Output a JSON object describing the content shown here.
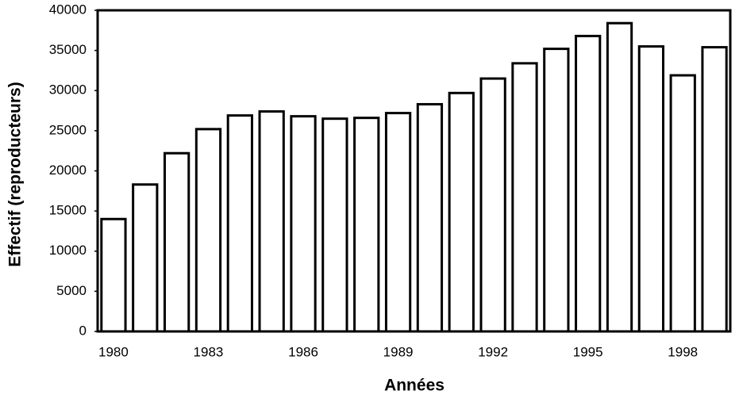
{
  "chart_data": {
    "type": "bar",
    "x_label": "Années",
    "y_label": "Effectif (reproducteurs)",
    "categories": [
      "1980",
      null,
      null,
      "1983",
      null,
      null,
      "1986",
      null,
      null,
      "1989",
      null,
      null,
      "1992",
      null,
      null,
      "1995",
      null,
      null,
      "1998",
      null
    ],
    "values": [
      14000,
      18300,
      22200,
      25200,
      26900,
      27400,
      26800,
      26500,
      26600,
      27200,
      28300,
      29700,
      31500,
      33400,
      35200,
      36800,
      38400,
      35500,
      31900,
      35400
    ],
    "color": "#ffffff",
    "ylim": [
      0,
      40000
    ],
    "yticks": [
      0,
      5000,
      10000,
      15000,
      20000,
      25000,
      30000,
      35000,
      40000
    ],
    "grid": false
  }
}
